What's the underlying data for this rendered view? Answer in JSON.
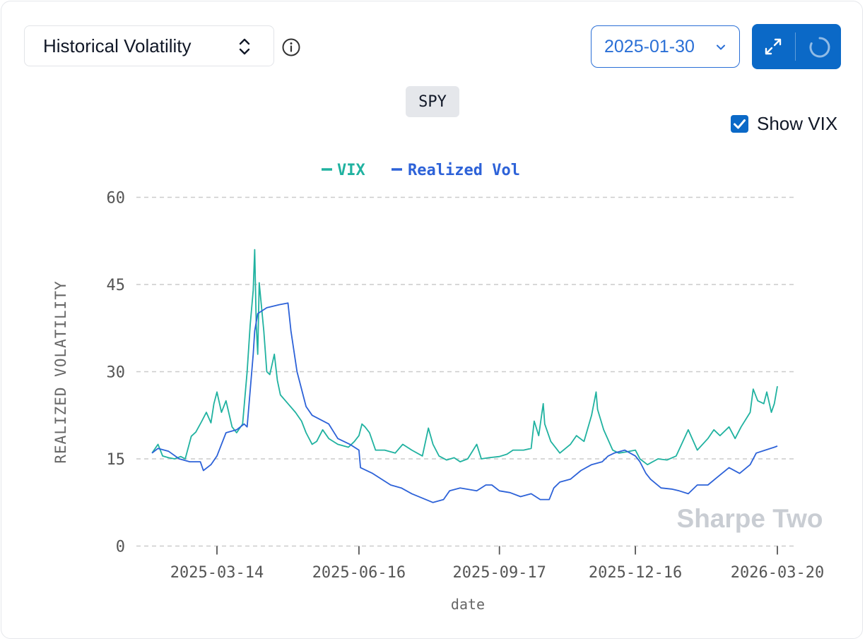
{
  "header": {
    "metric_label": "Historical Volatility",
    "start_date": "2025-01-30",
    "ticker": "SPY",
    "show_vix_label": "Show VIX",
    "show_vix_checked": true
  },
  "colors": {
    "accent": "#0b69c7",
    "vix": "#20b2a0",
    "realized": "#2d62d8",
    "grid": "#cccccc",
    "axis_text": "#555555"
  },
  "icons": {
    "metric_toggle": "chevron-up-down-icon",
    "info": "info-icon",
    "date_dropdown": "chevron-down-icon",
    "expand": "expand-arrows-icon",
    "refresh": "spinner-icon",
    "checkbox": "checkmark-icon"
  },
  "watermark": "Sharpe Two",
  "chart_data": {
    "type": "line",
    "xlabel": "date",
    "ylabel": "REALIZED VOLATILITY",
    "ylim": [
      0,
      60
    ],
    "yticks": [
      0,
      15,
      30,
      45,
      60
    ],
    "xticks": [
      "2025-03-14",
      "2025-06-16",
      "2025-09-17",
      "2025-12-16",
      "2026-03-20"
    ],
    "grid": true,
    "legend_position": "top-center",
    "series": [
      {
        "name": "VIX",
        "color": "#20b2a0",
        "points": [
          [
            "2025-01-30",
            16.0
          ],
          [
            "2025-02-03",
            17.5
          ],
          [
            "2025-02-06",
            15.5
          ],
          [
            "2025-02-10",
            15.2
          ],
          [
            "2025-02-14",
            15.0
          ],
          [
            "2025-02-18",
            15.4
          ],
          [
            "2025-02-21",
            15.0
          ],
          [
            "2025-02-25",
            18.9
          ],
          [
            "2025-02-28",
            19.6
          ],
          [
            "2025-03-04",
            21.5
          ],
          [
            "2025-03-07",
            23.0
          ],
          [
            "2025-03-10",
            21.2
          ],
          [
            "2025-03-12",
            24.5
          ],
          [
            "2025-03-14",
            26.5
          ],
          [
            "2025-03-17",
            23.0
          ],
          [
            "2025-03-20",
            25.0
          ],
          [
            "2025-03-24",
            20.5
          ],
          [
            "2025-03-27",
            19.5
          ],
          [
            "2025-03-31",
            21.0
          ],
          [
            "2025-04-03",
            30.0
          ],
          [
            "2025-04-05",
            38.0
          ],
          [
            "2025-04-07",
            44.0
          ],
          [
            "2025-04-08",
            51.0
          ],
          [
            "2025-04-09",
            38.0
          ],
          [
            "2025-04-10",
            33.0
          ],
          [
            "2025-04-11",
            45.3
          ],
          [
            "2025-04-14",
            37.0
          ],
          [
            "2025-04-16",
            30.0
          ],
          [
            "2025-04-18",
            29.5
          ],
          [
            "2025-04-21",
            33.0
          ],
          [
            "2025-04-23",
            28.5
          ],
          [
            "2025-04-25",
            26.0
          ],
          [
            "2025-04-30",
            24.5
          ],
          [
            "2025-05-05",
            23.0
          ],
          [
            "2025-05-09",
            21.5
          ],
          [
            "2025-05-12",
            19.5
          ],
          [
            "2025-05-16",
            17.5
          ],
          [
            "2025-05-19",
            18.0
          ],
          [
            "2025-05-23",
            20.0
          ],
          [
            "2025-05-27",
            18.5
          ],
          [
            "2025-06-02",
            17.5
          ],
          [
            "2025-06-09",
            17.0
          ],
          [
            "2025-06-13",
            18.0
          ],
          [
            "2025-06-16",
            19.0
          ],
          [
            "2025-06-18",
            21.0
          ],
          [
            "2025-06-20",
            20.5
          ],
          [
            "2025-06-23",
            19.5
          ],
          [
            "2025-06-27",
            16.5
          ],
          [
            "2025-07-03",
            16.5
          ],
          [
            "2025-07-10",
            16.0
          ],
          [
            "2025-07-15",
            17.5
          ],
          [
            "2025-07-21",
            16.5
          ],
          [
            "2025-07-28",
            15.5
          ],
          [
            "2025-08-01",
            20.3
          ],
          [
            "2025-08-04",
            17.5
          ],
          [
            "2025-08-08",
            15.5
          ],
          [
            "2025-08-13",
            14.8
          ],
          [
            "2025-08-18",
            15.2
          ],
          [
            "2025-08-22",
            14.5
          ],
          [
            "2025-08-27",
            15.0
          ],
          [
            "2025-09-02",
            17.5
          ],
          [
            "2025-09-05",
            15.0
          ],
          [
            "2025-09-10",
            15.2
          ],
          [
            "2025-09-17",
            15.4
          ],
          [
            "2025-09-22",
            15.8
          ],
          [
            "2025-09-26",
            16.5
          ],
          [
            "2025-10-03",
            16.5
          ],
          [
            "2025-10-08",
            16.8
          ],
          [
            "2025-10-10",
            21.5
          ],
          [
            "2025-10-13",
            19.0
          ],
          [
            "2025-10-16",
            24.5
          ],
          [
            "2025-10-17",
            21.0
          ],
          [
            "2025-10-21",
            18.0
          ],
          [
            "2025-10-27",
            16.0
          ],
          [
            "2025-11-03",
            17.5
          ],
          [
            "2025-11-07",
            19.0
          ],
          [
            "2025-11-12",
            18.0
          ],
          [
            "2025-11-17",
            22.5
          ],
          [
            "2025-11-20",
            26.5
          ],
          [
            "2025-11-21",
            23.5
          ],
          [
            "2025-11-25",
            20.0
          ],
          [
            "2025-12-01",
            16.5
          ],
          [
            "2025-12-05",
            16.0
          ],
          [
            "2025-12-10",
            16.2
          ],
          [
            "2025-12-16",
            16.5
          ],
          [
            "2025-12-19",
            15.0
          ],
          [
            "2025-12-24",
            14.0
          ],
          [
            "2025-12-31",
            15.0
          ],
          [
            "2026-01-06",
            14.8
          ],
          [
            "2026-01-12",
            15.5
          ],
          [
            "2026-01-20",
            20.0
          ],
          [
            "2026-01-26",
            16.5
          ],
          [
            "2026-02-02",
            18.5
          ],
          [
            "2026-02-06",
            20.0
          ],
          [
            "2026-02-10",
            19.0
          ],
          [
            "2026-02-16",
            20.5
          ],
          [
            "2026-02-20",
            18.5
          ],
          [
            "2026-02-24",
            20.5
          ],
          [
            "2026-03-02",
            23.0
          ],
          [
            "2026-03-04",
            27.0
          ],
          [
            "2026-03-07",
            25.0
          ],
          [
            "2026-03-11",
            24.5
          ],
          [
            "2026-03-13",
            26.5
          ],
          [
            "2026-03-16",
            23.0
          ],
          [
            "2026-03-18",
            24.5
          ],
          [
            "2026-03-20",
            27.5
          ]
        ]
      },
      {
        "name": "Realized Vol",
        "color": "#2d62d8",
        "points": [
          [
            "2025-01-30",
            16.0
          ],
          [
            "2025-02-03",
            16.8
          ],
          [
            "2025-02-10",
            16.3
          ],
          [
            "2025-02-17",
            15.0
          ],
          [
            "2025-02-24",
            14.5
          ],
          [
            "2025-03-03",
            14.5
          ],
          [
            "2025-03-05",
            13.0
          ],
          [
            "2025-03-10",
            14.0
          ],
          [
            "2025-03-14",
            15.5
          ],
          [
            "2025-03-20",
            19.5
          ],
          [
            "2025-03-27",
            20.0
          ],
          [
            "2025-04-01",
            21.0
          ],
          [
            "2025-04-03",
            20.5
          ],
          [
            "2025-04-07",
            33.0
          ],
          [
            "2025-04-08",
            37.0
          ],
          [
            "2025-04-10",
            40.0
          ],
          [
            "2025-04-16",
            41.0
          ],
          [
            "2025-04-24",
            41.5
          ],
          [
            "2025-04-30",
            41.8
          ],
          [
            "2025-05-02",
            37.0
          ],
          [
            "2025-05-06",
            30.0
          ],
          [
            "2025-05-12",
            24.0
          ],
          [
            "2025-05-16",
            22.5
          ],
          [
            "2025-05-27",
            21.0
          ],
          [
            "2025-06-02",
            18.5
          ],
          [
            "2025-06-10",
            17.5
          ],
          [
            "2025-06-16",
            16.5
          ],
          [
            "2025-06-17",
            13.5
          ],
          [
            "2025-06-25",
            12.5
          ],
          [
            "2025-07-07",
            10.5
          ],
          [
            "2025-07-14",
            10.0
          ],
          [
            "2025-07-21",
            9.0
          ],
          [
            "2025-08-04",
            7.5
          ],
          [
            "2025-08-11",
            8.0
          ],
          [
            "2025-08-15",
            9.5
          ],
          [
            "2025-08-22",
            10.0
          ],
          [
            "2025-09-02",
            9.5
          ],
          [
            "2025-09-08",
            10.5
          ],
          [
            "2025-09-12",
            10.5
          ],
          [
            "2025-09-17",
            9.5
          ],
          [
            "2025-09-24",
            9.2
          ],
          [
            "2025-10-01",
            8.5
          ],
          [
            "2025-10-08",
            9.0
          ],
          [
            "2025-10-14",
            8.0
          ],
          [
            "2025-10-20",
            8.0
          ],
          [
            "2025-10-23",
            10.0
          ],
          [
            "2025-10-27",
            11.0
          ],
          [
            "2025-11-03",
            11.5
          ],
          [
            "2025-11-10",
            13.0
          ],
          [
            "2025-11-17",
            14.0
          ],
          [
            "2025-11-24",
            14.5
          ],
          [
            "2025-11-28",
            15.5
          ],
          [
            "2025-12-02",
            16.0
          ],
          [
            "2025-12-09",
            16.5
          ],
          [
            "2025-12-16",
            15.5
          ],
          [
            "2025-12-19",
            14.5
          ],
          [
            "2025-12-23",
            12.5
          ],
          [
            "2025-12-26",
            11.5
          ],
          [
            "2026-01-02",
            10.0
          ],
          [
            "2026-01-09",
            9.8
          ],
          [
            "2026-01-14",
            9.5
          ],
          [
            "2026-01-20",
            9.0
          ],
          [
            "2026-01-26",
            10.5
          ],
          [
            "2026-02-02",
            10.5
          ],
          [
            "2026-02-09",
            12.0
          ],
          [
            "2026-02-16",
            13.5
          ],
          [
            "2026-02-23",
            12.5
          ],
          [
            "2026-03-02",
            14.0
          ],
          [
            "2026-03-06",
            16.0
          ],
          [
            "2026-03-12",
            16.5
          ],
          [
            "2026-03-18",
            17.0
          ],
          [
            "2026-03-20",
            17.2
          ]
        ]
      }
    ]
  }
}
